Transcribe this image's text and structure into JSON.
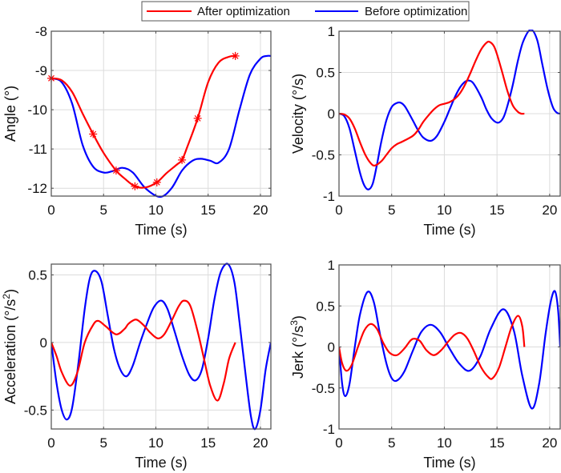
{
  "legend": {
    "placement": "top-center",
    "entries": [
      {
        "label": "After optimization",
        "color": "#ff0000"
      },
      {
        "label": "Before optimization",
        "color": "#0000ff"
      }
    ]
  },
  "chart_data": [
    {
      "type": "line",
      "id": "angle",
      "title": "",
      "xlabel": "Time (s)",
      "ylabel": "Angle (°)",
      "ylabel_sup": "",
      "xlim": [
        0,
        21
      ],
      "ylim": [
        -12.2,
        -8
      ],
      "xticks": [
        0,
        5,
        10,
        15,
        20
      ],
      "yticks": [
        -12,
        -11,
        -10,
        -9,
        -8
      ],
      "ytick_labels": [
        "-12",
        "-11",
        "-10",
        "-9",
        "-8"
      ],
      "grid": true,
      "series": [
        {
          "name": "After optimization",
          "color": "#ff0000",
          "x": [
            0,
            1,
            2,
            3,
            4,
            5,
            6.2,
            7,
            8,
            9,
            10.1,
            11,
            12,
            12.5,
            13,
            14,
            15,
            16,
            17,
            17.6
          ],
          "y": [
            -9.2,
            -9.25,
            -9.55,
            -10.1,
            -10.62,
            -11.1,
            -11.55,
            -11.75,
            -11.95,
            -11.98,
            -11.85,
            -11.62,
            -11.4,
            -11.28,
            -10.95,
            -10.22,
            -9.3,
            -8.8,
            -8.65,
            -8.63
          ],
          "markers": {
            "symbol": "asterisk",
            "x": [
              0,
              4.0,
              6.2,
              8.0,
              10.1,
              12.5,
              14.0,
              17.6
            ],
            "y": [
              -9.2,
              -10.62,
              -11.55,
              -11.95,
              -11.85,
              -11.28,
              -10.22,
              -8.63
            ]
          }
        },
        {
          "name": "Before optimization",
          "color": "#0000ff",
          "x": [
            0,
            1,
            2,
            3,
            4,
            5,
            5.8,
            6.8,
            7.8,
            9,
            10.4,
            11.5,
            12.5,
            13.5,
            14.3,
            15.2,
            16,
            17,
            18,
            19,
            20,
            20.6,
            21
          ],
          "y": [
            -9.2,
            -9.3,
            -9.85,
            -10.9,
            -11.45,
            -11.6,
            -11.57,
            -11.48,
            -11.6,
            -12.0,
            -12.22,
            -12.0,
            -11.55,
            -11.3,
            -11.25,
            -11.3,
            -11.35,
            -11.0,
            -10.0,
            -9.1,
            -8.7,
            -8.63,
            -8.63
          ]
        }
      ]
    },
    {
      "type": "line",
      "id": "velocity",
      "title": "",
      "xlabel": "Time (s)",
      "ylabel": "Velocity (°/s)",
      "ylabel_sup": "",
      "xlim": [
        0,
        21
      ],
      "ylim": [
        -1,
        1
      ],
      "xticks": [
        0,
        5,
        10,
        15,
        20
      ],
      "yticks": [
        -1,
        -0.5,
        0,
        0.5,
        1
      ],
      "ytick_labels": [
        "-1",
        "-0.5",
        "0",
        "0.5",
        "1"
      ],
      "grid": true,
      "series": [
        {
          "name": "After optimization",
          "color": "#ff0000",
          "x": [
            0,
            0.5,
            1,
            1.5,
            2,
            2.5,
            3,
            3.4,
            4,
            4.5,
            5,
            5.5,
            6,
            7,
            7.5,
            8,
            8.5,
            9,
            9.5,
            10,
            10.5,
            11,
            11.5,
            12,
            12.5,
            13,
            13.5,
            14,
            14.3,
            14.7,
            15,
            15.5,
            16,
            16.5,
            17,
            17.3,
            17.6
          ],
          "y": [
            0,
            -0.01,
            -0.06,
            -0.18,
            -0.35,
            -0.5,
            -0.6,
            -0.63,
            -0.58,
            -0.5,
            -0.42,
            -0.37,
            -0.34,
            -0.27,
            -0.2,
            -0.1,
            -0.02,
            0.05,
            0.1,
            0.12,
            0.14,
            0.18,
            0.25,
            0.36,
            0.5,
            0.65,
            0.78,
            0.86,
            0.87,
            0.82,
            0.72,
            0.5,
            0.27,
            0.1,
            0.02,
            0.0,
            0.0
          ]
        },
        {
          "name": "Before optimization",
          "color": "#0000ff",
          "x": [
            0,
            0.5,
            1,
            1.5,
            2,
            2.4,
            2.8,
            3.2,
            3.6,
            4,
            4.5,
            5,
            5.5,
            5.9,
            6.3,
            7,
            7.5,
            8,
            8.7,
            9.3,
            10,
            10.5,
            11,
            11.5,
            12,
            12.4,
            12.8,
            13.5,
            14,
            14.5,
            15.1,
            15.6,
            16,
            16.5,
            17,
            17.5,
            18.2,
            18.8,
            19.3,
            19.8,
            20.3,
            20.7,
            21
          ],
          "y": [
            0,
            -0.03,
            -0.18,
            -0.45,
            -0.72,
            -0.87,
            -0.92,
            -0.85,
            -0.62,
            -0.35,
            -0.08,
            0.08,
            0.13,
            0.13,
            0.08,
            -0.08,
            -0.2,
            -0.29,
            -0.33,
            -0.27,
            -0.1,
            0.05,
            0.2,
            0.32,
            0.39,
            0.4,
            0.36,
            0.2,
            0.05,
            -0.06,
            -0.11,
            -0.05,
            0.1,
            0.35,
            0.65,
            0.88,
            1.02,
            0.9,
            0.6,
            0.3,
            0.08,
            0.01,
            0.0
          ]
        }
      ]
    },
    {
      "type": "line",
      "id": "acceleration",
      "title": "",
      "xlabel": "Time (s)",
      "ylabel": "Acceleration (°/s",
      "ylabel_sup": "2",
      "ylabel_suffix": ")",
      "xlim": [
        0,
        21
      ],
      "ylim": [
        -0.64,
        0.58
      ],
      "xticks": [
        0,
        5,
        10,
        15,
        20
      ],
      "yticks": [
        -0.5,
        0,
        0.5
      ],
      "ytick_labels": [
        "-0.5",
        "0",
        "0.5"
      ],
      "grid": true,
      "series": [
        {
          "name": "After optimization",
          "color": "#ff0000",
          "x": [
            0,
            0.5,
            1,
            1.8,
            2.5,
            3.2,
            4,
            4.5,
            5.2,
            6.2,
            7,
            7.4,
            8.1,
            8.8,
            9.5,
            10.2,
            10.8,
            11.5,
            12.2,
            12.7,
            13.3,
            14,
            14.6,
            15.2,
            15.9,
            16.5,
            17,
            17.6
          ],
          "y": [
            0,
            -0.1,
            -0.22,
            -0.32,
            -0.22,
            0.0,
            0.13,
            0.16,
            0.12,
            0.06,
            0.1,
            0.14,
            0.17,
            0.13,
            0.07,
            0.03,
            0.06,
            0.16,
            0.27,
            0.31,
            0.27,
            0.08,
            -0.12,
            -0.32,
            -0.43,
            -0.3,
            -0.12,
            0.0
          ]
        },
        {
          "name": "Before optimization",
          "color": "#0000ff",
          "x": [
            0,
            0.5,
            1,
            1.5,
            2,
            2.6,
            3.2,
            3.7,
            4.2,
            4.8,
            5.4,
            6,
            6.6,
            7.2,
            7.8,
            8.5,
            9.2,
            9.8,
            10.5,
            11.1,
            11.8,
            12.5,
            13.2,
            13.8,
            14.4,
            15,
            15.6,
            16.2,
            16.9,
            17.5,
            18,
            18.6,
            19.1,
            19.5,
            20,
            20.5,
            21
          ],
          "y": [
            0,
            -0.3,
            -0.5,
            -0.57,
            -0.48,
            -0.15,
            0.25,
            0.48,
            0.53,
            0.45,
            0.2,
            -0.05,
            -0.2,
            -0.25,
            -0.17,
            0.0,
            0.15,
            0.26,
            0.31,
            0.25,
            0.08,
            -0.1,
            -0.24,
            -0.28,
            -0.2,
            0.03,
            0.32,
            0.52,
            0.58,
            0.45,
            0.15,
            -0.25,
            -0.55,
            -0.64,
            -0.5,
            -0.2,
            0.0
          ]
        }
      ]
    },
    {
      "type": "line",
      "id": "jerk",
      "title": "",
      "xlabel": "Time (s)",
      "ylabel": "Jerk (°/s",
      "ylabel_sup": "3",
      "ylabel_suffix": ")",
      "xlim": [
        0,
        21
      ],
      "ylim": [
        -1,
        1
      ],
      "xticks": [
        0,
        5,
        10,
        15,
        20
      ],
      "yticks": [
        -1,
        -0.5,
        0,
        0.5,
        1
      ],
      "ytick_labels": [
        "-1",
        "-0.5",
        "0",
        "0.5",
        "1"
      ],
      "grid": true,
      "series": [
        {
          "name": "After optimization",
          "color": "#ff0000",
          "x": [
            0,
            0.3,
            0.7,
            1.2,
            1.8,
            2.4,
            3,
            3.6,
            4.2,
            4.8,
            5.5,
            6.2,
            6.8,
            7.2,
            7.7,
            8.3,
            9,
            9.7,
            10.4,
            11,
            11.6,
            12.2,
            12.8,
            13.5,
            14.2,
            14.6,
            15.2,
            15.8,
            16.4,
            17,
            17.4,
            17.6
          ],
          "y": [
            0,
            -0.2,
            -0.29,
            -0.22,
            0.0,
            0.2,
            0.28,
            0.22,
            0.05,
            -0.07,
            -0.1,
            -0.02,
            0.08,
            0.1,
            0.07,
            -0.04,
            -0.1,
            -0.04,
            0.07,
            0.15,
            0.17,
            0.1,
            -0.05,
            -0.25,
            -0.37,
            -0.38,
            -0.25,
            0.0,
            0.25,
            0.38,
            0.25,
            0.0
          ]
        },
        {
          "name": "Before optimization",
          "color": "#0000ff",
          "x": [
            0,
            0.3,
            0.6,
            1,
            1.5,
            2,
            2.7,
            3.3,
            3.9,
            4.5,
            5,
            5.5,
            6.2,
            7,
            7.8,
            8.7,
            9.6,
            10.5,
            11.4,
            12.4,
            13.4,
            14.4,
            15.6,
            16.6,
            17.4,
            18.3,
            19,
            19.6,
            20.1,
            20.5,
            20.8,
            21
          ],
          "y": [
            0,
            -0.45,
            -0.6,
            -0.45,
            0.0,
            0.4,
            0.67,
            0.55,
            0.15,
            -0.2,
            -0.38,
            -0.41,
            -0.3,
            -0.05,
            0.18,
            0.27,
            0.18,
            -0.02,
            -0.2,
            -0.29,
            -0.12,
            0.22,
            0.46,
            0.2,
            -0.35,
            -0.75,
            -0.45,
            0.15,
            0.55,
            0.68,
            0.45,
            0.0
          ]
        }
      ]
    }
  ]
}
